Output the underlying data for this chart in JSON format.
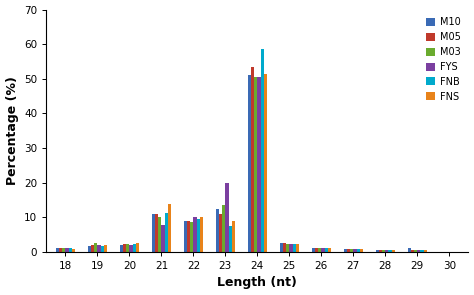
{
  "categories": [
    18,
    19,
    20,
    21,
    22,
    23,
    24,
    25,
    26,
    27,
    28,
    29,
    30
  ],
  "series": {
    "M10": [
      1.0,
      1.8,
      2.0,
      11.0,
      8.8,
      12.5,
      51.0,
      2.5,
      1.1,
      0.9,
      0.5,
      1.2,
      0.1
    ],
    "M05": [
      1.0,
      2.0,
      2.2,
      11.0,
      9.0,
      11.0,
      53.5,
      2.5,
      1.1,
      0.9,
      0.5,
      0.5,
      0.1
    ],
    "M03": [
      1.0,
      2.5,
      2.2,
      10.0,
      8.5,
      13.5,
      50.5,
      2.2,
      1.1,
      0.9,
      0.5,
      0.5,
      0.1
    ],
    "FYS": [
      1.0,
      2.0,
      2.0,
      7.8,
      10.0,
      20.0,
      50.5,
      2.2,
      1.1,
      0.9,
      0.5,
      0.4,
      0.1
    ],
    "FNB": [
      1.0,
      1.8,
      2.2,
      11.2,
      9.5,
      7.5,
      58.5,
      2.2,
      1.1,
      0.9,
      0.5,
      0.4,
      0.1
    ],
    "FNS": [
      0.8,
      2.0,
      2.5,
      13.8,
      10.0,
      8.8,
      51.3,
      2.2,
      1.1,
      0.9,
      0.5,
      0.4,
      0.1
    ]
  },
  "colors": {
    "M10": "#3A6AB5",
    "M05": "#C0392B",
    "M03": "#6AAB2E",
    "FYS": "#7B3FA0",
    "FNB": "#00AACC",
    "FNS": "#E8831A"
  },
  "legend_order": [
    "M10",
    "M05",
    "M03",
    "FYS",
    "FNB",
    "FNS"
  ],
  "xlabel": "Length (nt)",
  "ylabel": "Percentage (%)",
  "ylim": [
    0,
    70
  ],
  "yticks": [
    0,
    10,
    20,
    30,
    40,
    50,
    60,
    70
  ],
  "bar_width": 0.1,
  "figsize": [
    4.74,
    2.95
  ],
  "dpi": 100
}
